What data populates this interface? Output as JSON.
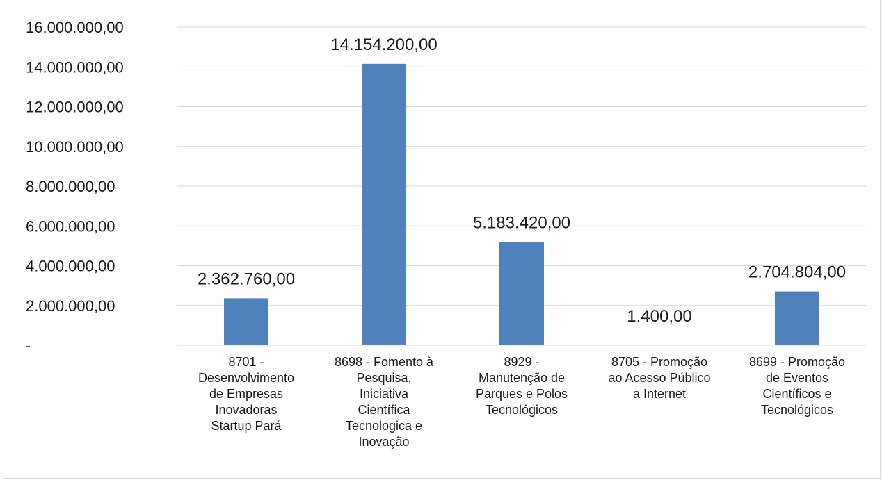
{
  "chart_data": {
    "type": "bar",
    "categories": [
      [
        "8701 -",
        "Desenvolvimento",
        "de Empresas",
        "Inovadoras",
        "Startup Pará"
      ],
      [
        "8698 - Fomento à",
        "Pesquisa,",
        "Iniciativa",
        "Científica",
        "Tecnologica e",
        "Inovação"
      ],
      [
        "8929 -",
        "Manutenção de",
        "Parques e Polos",
        "Tecnológicos"
      ],
      [
        "8705 - Promoção",
        "ao Acesso Público",
        "a Internet"
      ],
      [
        "8699 - Promoção",
        "de Eventos",
        "Científicos e",
        "Tecnológicos"
      ]
    ],
    "values": [
      2362760.0,
      14154200.0,
      5183420.0,
      1400.0,
      2704804.0
    ],
    "data_labels": [
      "2.362.760,00",
      "14.154.200,00",
      "5.183.420,00",
      "1.400,00",
      "2.704.804,00"
    ],
    "yticks": [
      0,
      2000000,
      4000000,
      6000000,
      8000000,
      10000000,
      12000000,
      14000000,
      16000000
    ],
    "ytick_labels": [
      "-",
      "2.000.000,00",
      "4.000.000,00",
      "6.000.000,00",
      "8.000.000,00",
      "10.000.000,00",
      "12.000.000,00",
      "14.000.000,00",
      "16.000.000,00"
    ],
    "ylim": [
      0,
      16000000
    ],
    "grid": true,
    "bar_color": "#4f81bd",
    "title": "",
    "xlabel": "",
    "ylabel": ""
  }
}
